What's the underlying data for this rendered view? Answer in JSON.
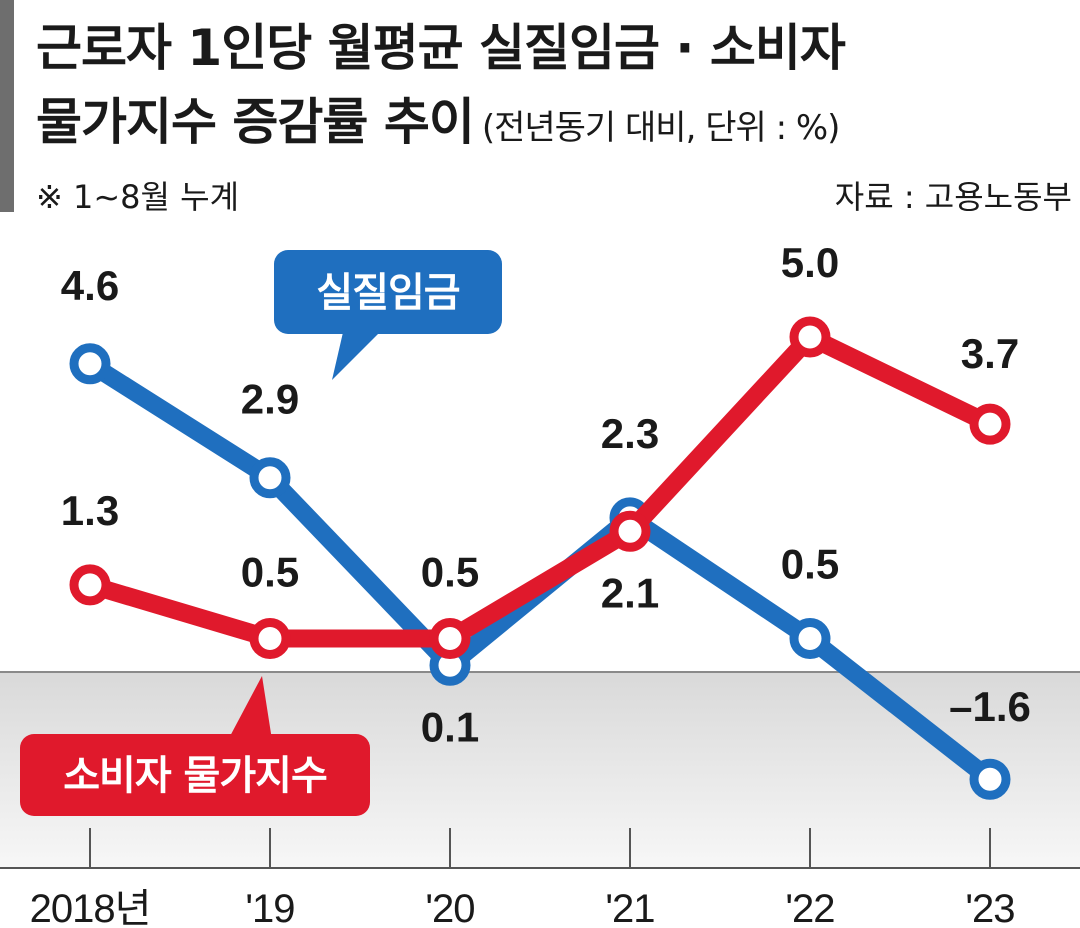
{
  "header": {
    "title_line1": "근로자 1인당 월평균 실질임금 · 소비자",
    "title_line2": "물가지수 증감률 추이",
    "unit_note": "(전년동기 대비, 단위 : %)",
    "period_note": "※ 1~8월 누계",
    "source_note": "자료 : 고용노동부"
  },
  "colors": {
    "real_wage": "#1f6fbf",
    "cpi": "#e0192c",
    "negative_band": "#e6e6e6"
  },
  "chart_data": {
    "type": "line",
    "categories": [
      "2018년",
      "'19",
      "'20",
      "'21",
      "'22",
      "'23"
    ],
    "ylim": [
      -2,
      6
    ],
    "grid": false,
    "series": [
      {
        "name": "실질임금",
        "values": [
          4.6,
          2.9,
          0.1,
          2.3,
          0.5,
          -1.6
        ],
        "labels": [
          "4.6",
          "2.9",
          "0.1",
          "2.3",
          "0.5",
          "–1.6"
        ]
      },
      {
        "name": "소비자 물가지수",
        "values": [
          1.3,
          0.5,
          0.5,
          2.1,
          5.0,
          3.7
        ],
        "labels": [
          "1.3",
          "0.5",
          "0.5",
          "2.1",
          "5.0",
          "3.7"
        ]
      }
    ]
  }
}
